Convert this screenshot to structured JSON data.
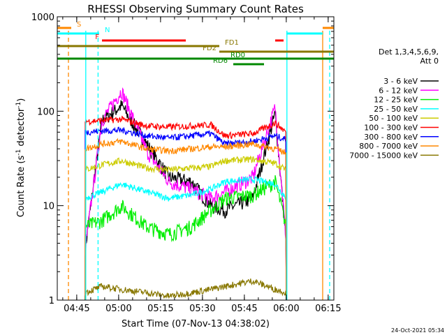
{
  "chart_data": {
    "type": "line",
    "title": "RHESSI Observing Summary Count Rates",
    "xlabel": "Start Time (07-Nov-13 04:38:02)",
    "ylabel_main": "Count Rate (s",
    "ylabel_sup1": "-1",
    "ylabel_mid": " detector",
    "ylabel_sup2": "-1",
    "ylabel_end": ")",
    "yscale": "log",
    "ylim": [
      1,
      1000
    ],
    "xlim_minutes": [
      0,
      99
    ],
    "x_ticks": [
      "04:45",
      "05:00",
      "05:15",
      "05:30",
      "05:45",
      "06:00",
      "06:15"
    ],
    "y_ticks": [
      "1",
      "10",
      "100",
      "1000"
    ],
    "legend_header": [
      "Det 1,3,4,5,6,9,",
      "Att 0"
    ],
    "legend_placement": "right",
    "series": [
      {
        "name": "3 - 6 keV",
        "color": "#000000",
        "values": [
          3.5,
          80,
          115,
          45,
          20,
          18,
          10,
          9,
          12,
          95,
          4
        ]
      },
      {
        "name": "6 - 12 keV",
        "color": "#ff00ff",
        "values": [
          3.5,
          80,
          165,
          38,
          18,
          15,
          12,
          14,
          20,
          110,
          4
        ]
      },
      {
        "name": "12 - 25 keV",
        "color": "#00ee00",
        "values": [
          6,
          7,
          10,
          6,
          5,
          6,
          9,
          12,
          13,
          18,
          6
        ]
      },
      {
        "name": "25 - 50 keV",
        "color": "#00ffff",
        "values": [
          12,
          14,
          17,
          14,
          12,
          13,
          15,
          18,
          19,
          17,
          12
        ]
      },
      {
        "name": "50 - 100 keV",
        "color": "#cccc00",
        "values": [
          24,
          27,
          30,
          25,
          24,
          25,
          26,
          30,
          31,
          28,
          24
        ]
      },
      {
        "name": "100 - 300 keV",
        "color": "#ff0000",
        "values": [
          78,
          80,
          82,
          70,
          68,
          70,
          72,
          55,
          58,
          75,
          60
        ]
      },
      {
        "name": "300 - 800 keV",
        "color": "#0000ff",
        "values": [
          60,
          62,
          63,
          55,
          52,
          55,
          58,
          45,
          48,
          55,
          50
        ]
      },
      {
        "name": "800 - 7000 keV",
        "color": "#ff8800",
        "values": [
          40,
          45,
          48,
          40,
          38,
          40,
          42,
          42,
          45,
          40,
          36
        ]
      },
      {
        "name": "7000 - 15000 keV",
        "color": "#887700",
        "values": [
          1.2,
          1.4,
          1.3,
          1.2,
          1.1,
          1.2,
          1.3,
          1.4,
          1.6,
          1.3,
          1.2
        ]
      }
    ],
    "series_x_minutes": [
      10,
      16,
      23,
      32,
      40,
      48,
      55,
      60,
      70,
      78,
      82
    ],
    "flag_labels": [
      "S",
      "N",
      "F",
      "FD1",
      "FD2",
      "RD0",
      "RD6"
    ]
  },
  "footer": {
    "date": "24-Oct-2021 05:34"
  }
}
